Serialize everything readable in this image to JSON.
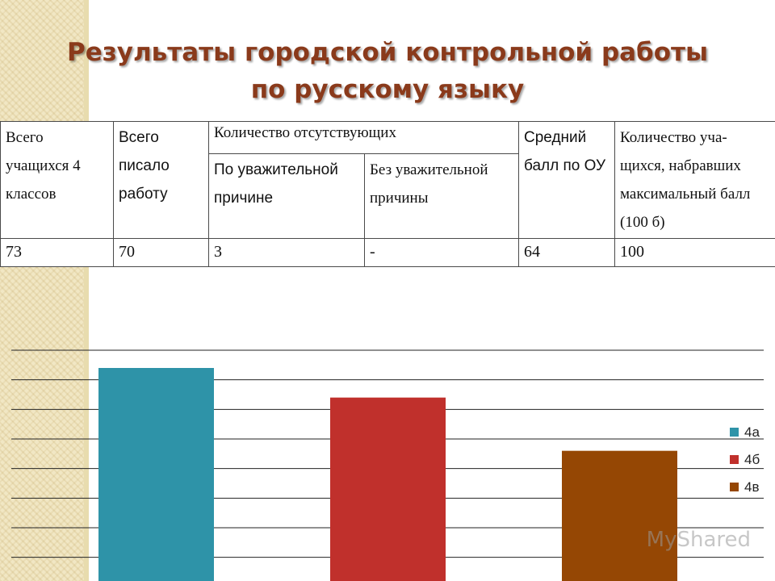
{
  "title": {
    "line1": "Результаты городской контрольной работы",
    "line2": "по русскому языку"
  },
  "table": {
    "headers": {
      "total_students": "Всего учащихся 4 классов",
      "wrote": "Всего писало работу",
      "absent": "Количество отсутствующих",
      "absent_valid": "По уважительной причине",
      "absent_invalid": "Без уважительной причины",
      "avg_score": "Средний балл по ОУ",
      "max_score_count": "Количество уча-щихся, набравших максимальный балл (100 б)"
    },
    "values": {
      "total_students": "73",
      "wrote": "70",
      "absent_valid": "3",
      "absent_invalid": "-",
      "avg_score": "64",
      "max_score_count": "100"
    }
  },
  "chart_data": {
    "type": "bar",
    "categories": [
      ""
    ],
    "series": [
      {
        "name": "4а",
        "values": [
          71
        ],
        "color": "#2e93a8"
      },
      {
        "name": "4б",
        "values": [
          66
        ],
        "color": "#c0302c"
      },
      {
        "name": "4в",
        "values": [
          57
        ],
        "color": "#954704"
      }
    ],
    "ylim": [
      35,
      74
    ],
    "grid": true,
    "legend": "right"
  },
  "watermark": "MyShared"
}
